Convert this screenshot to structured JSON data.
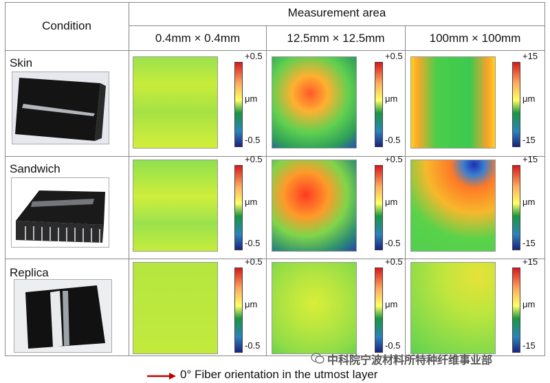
{
  "header": {
    "condition": "Condition",
    "measurement_area": "Measurement area",
    "areas": [
      "0.4mm × 0.4mm",
      "12.5mm × 12.5mm",
      "100mm × 100mm"
    ]
  },
  "rows": [
    {
      "label": "Skin",
      "scales": [
        {
          "top": "+0.5",
          "mid": "μm",
          "bot": "-0.5"
        },
        {
          "top": "+0.5",
          "mid": "μm",
          "bot": "-0.5"
        },
        {
          "top": "+15",
          "mid": "μm",
          "bot": "-15"
        }
      ]
    },
    {
      "label": "Sandwich",
      "scales": [
        {
          "top": "+0.5",
          "mid": "μm",
          "bot": "-0.5"
        },
        {
          "top": "+0.5",
          "mid": "μm",
          "bot": "-0.5"
        },
        {
          "top": "+15",
          "mid": "μm",
          "bot": "-15"
        }
      ]
    },
    {
      "label": "Replica",
      "scales": [
        {
          "top": "+0.5",
          "mid": "μm",
          "bot": "-0.5"
        },
        {
          "top": "+0.5",
          "mid": "μm",
          "bot": "-0.5"
        },
        {
          "top": "+15",
          "mid": "μm",
          "bot": "-15"
        }
      ]
    }
  ],
  "legend": {
    "text": "0°  Fiber orientation in the utmost layer",
    "arrow_color": "#c00000"
  },
  "watermark": "中科院宁波材料所特种纤维事业部"
}
